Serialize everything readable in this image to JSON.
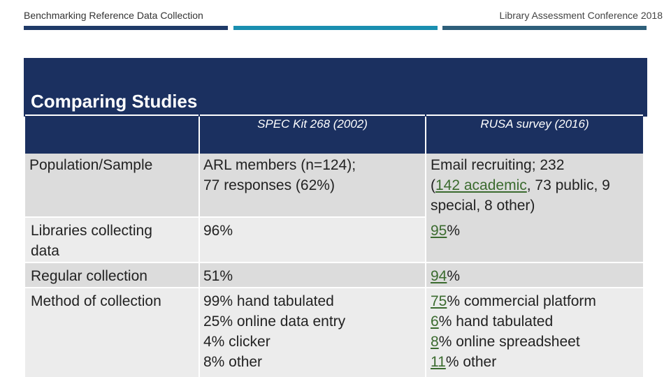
{
  "header": {
    "left_title": "Benchmarking Reference Data Collection",
    "right_title": "Library Assessment Conference 2018"
  },
  "slide": {
    "title": "Comparing Studies"
  },
  "table": {
    "columns": [
      "SPEC Kit 268 (2002)",
      "RUSA survey (2016)"
    ],
    "rows": [
      {
        "label": "Population/Sample",
        "spec": [
          "ARL members (n=124);",
          "77 responses (62%)"
        ],
        "rusa": {
          "line1": "Email recruiting; 232",
          "line2_pre": "(",
          "line2_link": "142 academic",
          "line2_post": ", 73 public, 9",
          "line3": "special, 8 other)"
        }
      },
      {
        "label": [
          "Libraries collecting",
          "data"
        ],
        "spec": "96%",
        "rusa": {
          "num": "95",
          "unit": "%"
        }
      },
      {
        "label": "Regular collection",
        "spec": "51%",
        "rusa": {
          "num": "94",
          "unit": "%"
        }
      },
      {
        "label": "Method of collection",
        "spec": [
          "99% hand tabulated",
          "25% online data entry",
          "4% clicker",
          "8% other"
        ],
        "rusa": [
          {
            "num": "75",
            "rest": "% commercial platform"
          },
          {
            "num": "6",
            "rest": "% hand tabulated"
          },
          {
            "num": "8",
            "rest": "% online spreadsheet"
          },
          {
            "num": "11",
            "rest": "% other"
          }
        ]
      }
    ]
  }
}
